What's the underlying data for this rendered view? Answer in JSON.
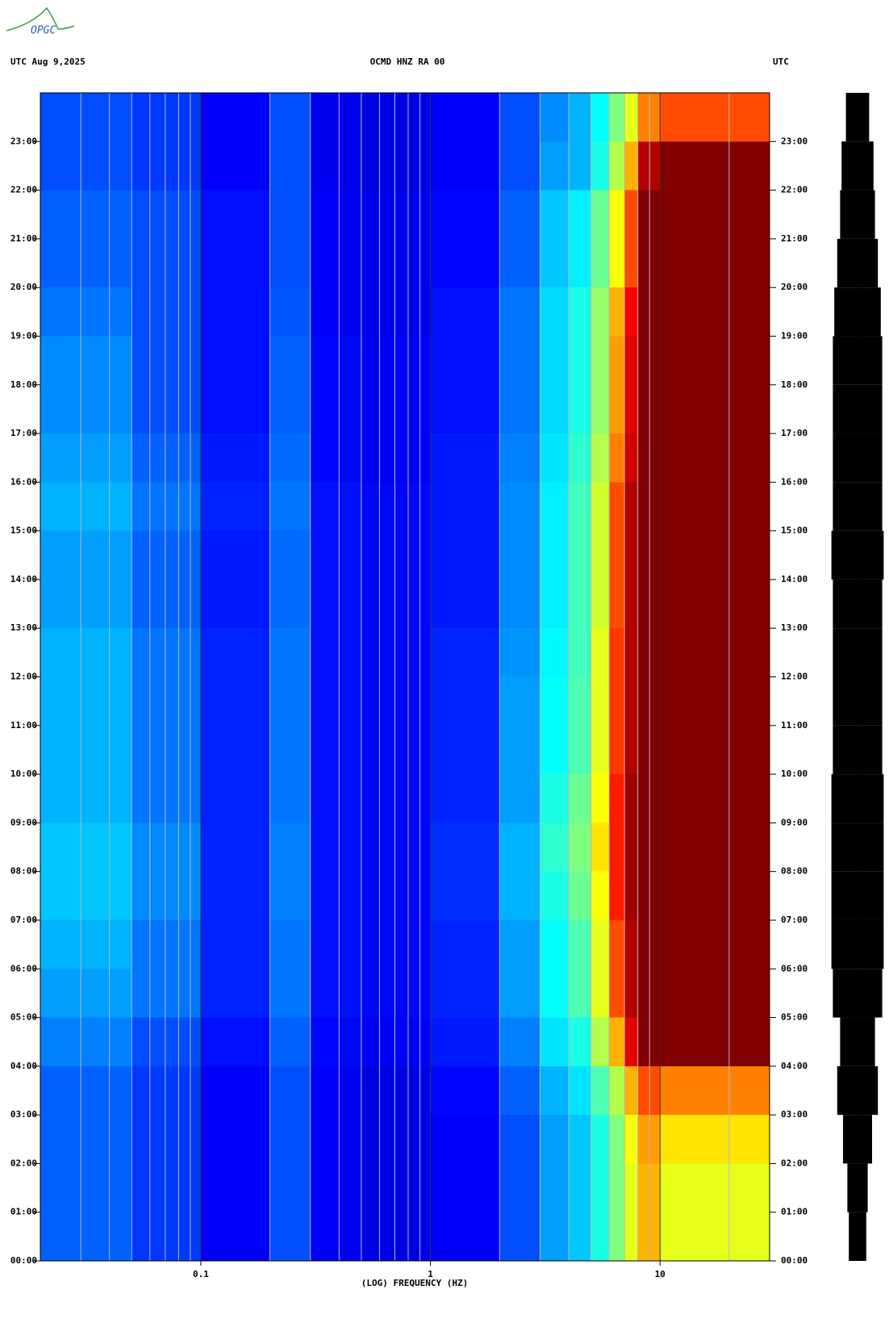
{
  "logo": "OPGC",
  "chart_data": {
    "type": "heatmap",
    "header_left": "UTC  Aug 9,2025",
    "title": "OCMD HNZ RA 00",
    "header_right": "UTC",
    "x_label": "(LOG) FREQUENCY (HZ)",
    "log_x": true,
    "xlim": [
      0.02,
      30
    ],
    "xticks": [
      {
        "value": 0.1,
        "label": "0.1"
      },
      1,
      10
    ],
    "xgrid": [
      0.02,
      0.03,
      0.04,
      0.05,
      0.06,
      0.07,
      0.08,
      0.09,
      0.2,
      0.3,
      0.4,
      0.5,
      0.6,
      0.7,
      0.8,
      0.9,
      2,
      3,
      4,
      5,
      6,
      7,
      8,
      9,
      20
    ],
    "ylim": [
      0,
      24
    ],
    "yticks": [
      {
        "value": 0,
        "label": "00:00"
      },
      {
        "value": 1,
        "label": "01:00"
      },
      {
        "value": 2,
        "label": "02:00"
      },
      {
        "value": 3,
        "label": "03:00"
      },
      {
        "value": 4,
        "label": "04:00"
      },
      {
        "value": 5,
        "label": "05:00"
      },
      {
        "value": 6,
        "label": "06:00"
      },
      {
        "value": 7,
        "label": "07:00"
      },
      {
        "value": 8,
        "label": "08:00"
      },
      {
        "value": 9,
        "label": "09:00"
      },
      {
        "value": 10,
        "label": "10:00"
      },
      {
        "value": 11,
        "label": "11:00"
      },
      {
        "value": 12,
        "label": "12:00"
      },
      {
        "value": 13,
        "label": "13:00"
      },
      {
        "value": 14,
        "label": "14:00"
      },
      {
        "value": 15,
        "label": "15:00"
      },
      {
        "value": 16,
        "label": "16:00"
      },
      {
        "value": 17,
        "label": "17:00"
      },
      {
        "value": 18,
        "label": "18:00"
      },
      {
        "value": 19,
        "label": "19:00"
      },
      {
        "value": 20,
        "label": "20:00"
      },
      {
        "value": 21,
        "label": "21:00"
      },
      {
        "value": 22,
        "label": "22:00"
      },
      {
        "value": 23,
        "label": "23:00"
      }
    ],
    "freq_bins": [
      0.02,
      0.05,
      0.1,
      0.2,
      0.3,
      0.5,
      1,
      2,
      3,
      4,
      5,
      6,
      7,
      8,
      10,
      30
    ],
    "z": [
      [
        0.22,
        0.18,
        0.12,
        0.2,
        0.12,
        0.1,
        0.12,
        0.2,
        0.28,
        0.32,
        0.4,
        0.5,
        0.6,
        0.7,
        0.6
      ],
      [
        0.22,
        0.18,
        0.12,
        0.2,
        0.12,
        0.1,
        0.12,
        0.2,
        0.28,
        0.32,
        0.4,
        0.5,
        0.6,
        0.7,
        0.6
      ],
      [
        0.22,
        0.18,
        0.12,
        0.2,
        0.12,
        0.1,
        0.12,
        0.2,
        0.28,
        0.32,
        0.4,
        0.5,
        0.62,
        0.72,
        0.65
      ],
      [
        0.22,
        0.18,
        0.12,
        0.2,
        0.12,
        0.1,
        0.13,
        0.22,
        0.3,
        0.35,
        0.45,
        0.55,
        0.7,
        0.8,
        0.75
      ],
      [
        0.25,
        0.2,
        0.14,
        0.22,
        0.13,
        0.12,
        0.15,
        0.25,
        0.35,
        0.4,
        0.55,
        0.7,
        0.9,
        1,
        1
      ],
      [
        0.28,
        0.24,
        0.16,
        0.24,
        0.14,
        0.13,
        0.16,
        0.28,
        0.38,
        0.45,
        0.6,
        0.8,
        0.95,
        1,
        1
      ],
      [
        0.3,
        0.24,
        0.16,
        0.24,
        0.14,
        0.13,
        0.16,
        0.28,
        0.38,
        0.45,
        0.6,
        0.8,
        0.95,
        1,
        1
      ],
      [
        0.32,
        0.26,
        0.16,
        0.25,
        0.14,
        0.13,
        0.17,
        0.3,
        0.4,
        0.48,
        0.62,
        0.85,
        0.97,
        1,
        1
      ],
      [
        0.32,
        0.26,
        0.16,
        0.25,
        0.14,
        0.13,
        0.17,
        0.3,
        0.42,
        0.5,
        0.65,
        0.85,
        0.97,
        1,
        1
      ],
      [
        0.3,
        0.24,
        0.16,
        0.24,
        0.14,
        0.13,
        0.16,
        0.28,
        0.4,
        0.48,
        0.62,
        0.85,
        0.97,
        1,
        1
      ],
      [
        0.3,
        0.24,
        0.16,
        0.24,
        0.14,
        0.13,
        0.16,
        0.28,
        0.38,
        0.45,
        0.6,
        0.82,
        0.95,
        1,
        1
      ],
      [
        0.3,
        0.24,
        0.16,
        0.24,
        0.14,
        0.13,
        0.16,
        0.28,
        0.38,
        0.45,
        0.6,
        0.82,
        0.95,
        1,
        1
      ],
      [
        0.3,
        0.24,
        0.16,
        0.24,
        0.14,
        0.13,
        0.16,
        0.27,
        0.37,
        0.44,
        0.6,
        0.82,
        0.95,
        1,
        1
      ],
      [
        0.28,
        0.22,
        0.15,
        0.23,
        0.14,
        0.13,
        0.15,
        0.26,
        0.36,
        0.44,
        0.58,
        0.8,
        0.95,
        1,
        1
      ],
      [
        0.28,
        0.22,
        0.15,
        0.23,
        0.14,
        0.13,
        0.15,
        0.26,
        0.36,
        0.44,
        0.58,
        0.8,
        0.95,
        1,
        1
      ],
      [
        0.3,
        0.24,
        0.16,
        0.24,
        0.14,
        0.13,
        0.15,
        0.26,
        0.36,
        0.44,
        0.58,
        0.8,
        0.95,
        1,
        1
      ],
      [
        0.28,
        0.22,
        0.15,
        0.23,
        0.13,
        0.12,
        0.15,
        0.25,
        0.35,
        0.42,
        0.55,
        0.75,
        0.92,
        1,
        1
      ],
      [
        0.26,
        0.2,
        0.14,
        0.22,
        0.13,
        0.12,
        0.14,
        0.24,
        0.34,
        0.4,
        0.52,
        0.72,
        0.9,
        1,
        1
      ],
      [
        0.26,
        0.2,
        0.14,
        0.22,
        0.13,
        0.12,
        0.14,
        0.24,
        0.34,
        0.4,
        0.52,
        0.72,
        0.9,
        1,
        1
      ],
      [
        0.24,
        0.2,
        0.14,
        0.21,
        0.12,
        0.11,
        0.14,
        0.24,
        0.34,
        0.4,
        0.52,
        0.7,
        0.88,
        1,
        1
      ],
      [
        0.22,
        0.2,
        0.14,
        0.2,
        0.12,
        0.11,
        0.13,
        0.22,
        0.32,
        0.36,
        0.48,
        0.62,
        0.8,
        1,
        1
      ],
      [
        0.22,
        0.2,
        0.14,
        0.2,
        0.12,
        0.11,
        0.13,
        0.22,
        0.32,
        0.36,
        0.48,
        0.62,
        0.8,
        1,
        1
      ],
      [
        0.2,
        0.18,
        0.12,
        0.2,
        0.11,
        0.1,
        0.12,
        0.2,
        0.28,
        0.3,
        0.4,
        0.55,
        0.7,
        0.95,
        1
      ],
      [
        0.2,
        0.18,
        0.12,
        0.2,
        0.11,
        0.1,
        0.12,
        0.2,
        0.26,
        0.3,
        0.38,
        0.5,
        0.6,
        0.75,
        0.8
      ]
    ],
    "trace_amplitude": [
      0.3,
      0.35,
      0.5,
      0.7,
      0.6,
      0.85,
      0.9,
      0.9,
      0.9,
      0.9,
      0.85,
      0.85,
      0.85,
      0.85,
      0.9,
      0.85,
      0.85,
      0.85,
      0.85,
      0.8,
      0.7,
      0.6,
      0.55,
      0.4
    ]
  }
}
